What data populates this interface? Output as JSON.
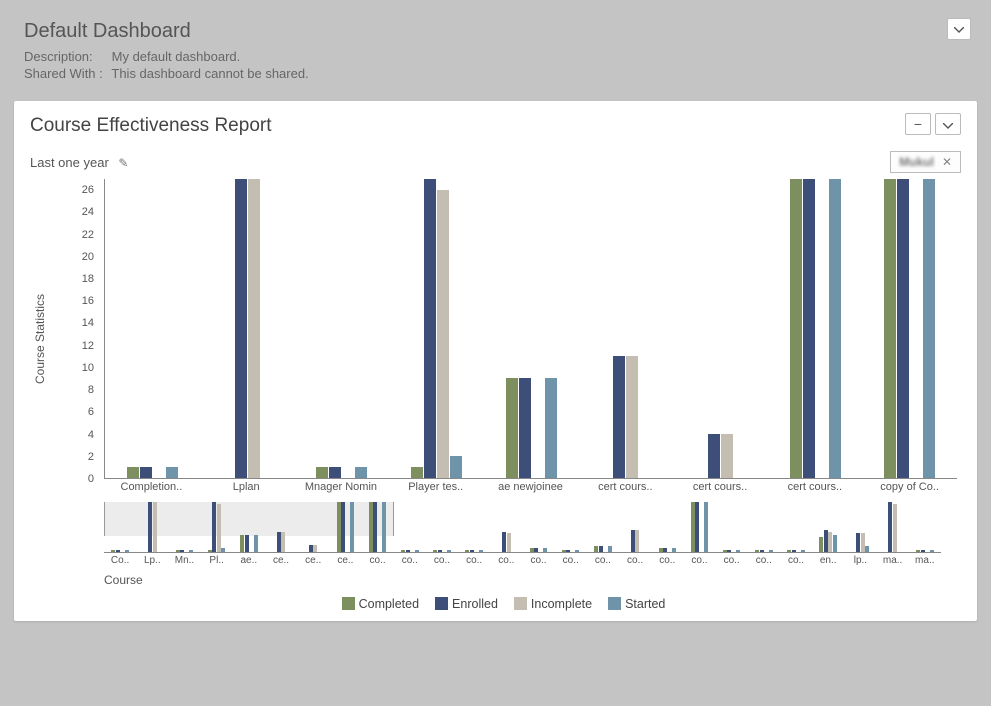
{
  "header": {
    "title": "Default Dashboard",
    "description_label": "Description:",
    "description_value": "My default dashboard.",
    "shared_label": "Shared With :",
    "shared_value": "This dashboard cannot be shared."
  },
  "panel": {
    "title": "Course Effectiveness Report",
    "range_label": "Last one year",
    "filter_chip": "Mukul"
  },
  "chart": {
    "type": "grouped-bar",
    "ylabel": "Course Statistics",
    "xlabel": "Course",
    "ylim": [
      0,
      27
    ],
    "yticks": [
      0,
      2,
      4,
      6,
      8,
      10,
      12,
      14,
      16,
      18,
      20,
      22,
      24,
      26
    ],
    "series": [
      {
        "key": "completed",
        "label": "Completed",
        "color": "#7e8f5f"
      },
      {
        "key": "enrolled",
        "label": "Enrolled",
        "color": "#3d4f78"
      },
      {
        "key": "incomplete",
        "label": "Incomplete",
        "color": "#c3bdb2"
      },
      {
        "key": "started",
        "label": "Started",
        "color": "#6f93a8"
      }
    ],
    "categories": [
      {
        "label": "Completion..",
        "completed": 1,
        "enrolled": 1,
        "incomplete": 0,
        "started": 1
      },
      {
        "label": "Lplan",
        "completed": 0,
        "enrolled": 27,
        "incomplete": 27,
        "started": 0
      },
      {
        "label": "Mnager Nomin",
        "completed": 1,
        "enrolled": 1,
        "incomplete": 0,
        "started": 1
      },
      {
        "label": "Player tes..",
        "completed": 1,
        "enrolled": 27,
        "incomplete": 26,
        "started": 2
      },
      {
        "label": "ae newjoinee",
        "completed": 9,
        "enrolled": 9,
        "incomplete": 0,
        "started": 9
      },
      {
        "label": "cert cours..",
        "completed": 0,
        "enrolled": 11,
        "incomplete": 11,
        "started": 0
      },
      {
        "label": "cert cours..",
        "completed": 0,
        "enrolled": 4,
        "incomplete": 4,
        "started": 0
      },
      {
        "label": "cert cours..",
        "completed": 27,
        "enrolled": 27,
        "incomplete": 0,
        "started": 27
      },
      {
        "label": "copy of Co..",
        "completed": 27,
        "enrolled": 27,
        "incomplete": 0,
        "started": 27
      }
    ]
  },
  "overview": {
    "categories": [
      {
        "label": "Co..",
        "v": [
          1,
          1,
          0,
          1
        ]
      },
      {
        "label": "Lp..",
        "v": [
          0,
          27,
          27,
          0
        ]
      },
      {
        "label": "Mn..",
        "v": [
          1,
          1,
          0,
          1
        ]
      },
      {
        "label": "Pl..",
        "v": [
          1,
          27,
          26,
          2
        ]
      },
      {
        "label": "ae..",
        "v": [
          9,
          9,
          0,
          9
        ]
      },
      {
        "label": "ce..",
        "v": [
          0,
          11,
          11,
          0
        ]
      },
      {
        "label": "ce..",
        "v": [
          0,
          4,
          4,
          0
        ]
      },
      {
        "label": "ce..",
        "v": [
          27,
          27,
          0,
          27
        ]
      },
      {
        "label": "co..",
        "v": [
          27,
          27,
          0,
          27
        ]
      },
      {
        "label": "co..",
        "v": [
          1,
          1,
          0,
          1
        ]
      },
      {
        "label": "co..",
        "v": [
          1,
          1,
          0,
          1
        ]
      },
      {
        "label": "co..",
        "v": [
          1,
          1,
          0,
          1
        ]
      },
      {
        "label": "co..",
        "v": [
          0,
          11,
          10,
          0
        ]
      },
      {
        "label": "co..",
        "v": [
          2,
          2,
          0,
          2
        ]
      },
      {
        "label": "co..",
        "v": [
          1,
          1,
          0,
          1
        ]
      },
      {
        "label": "co..",
        "v": [
          3,
          3,
          0,
          3
        ]
      },
      {
        "label": "co..",
        "v": [
          0,
          12,
          12,
          0
        ]
      },
      {
        "label": "co..",
        "v": [
          2,
          2,
          0,
          2
        ]
      },
      {
        "label": "co..",
        "v": [
          27,
          27,
          0,
          27
        ]
      },
      {
        "label": "co..",
        "v": [
          1,
          1,
          0,
          1
        ]
      },
      {
        "label": "co..",
        "v": [
          1,
          1,
          0,
          1
        ]
      },
      {
        "label": "co..",
        "v": [
          1,
          1,
          0,
          1
        ]
      },
      {
        "label": "en..",
        "v": [
          8,
          12,
          11,
          9
        ]
      },
      {
        "label": "lp..",
        "v": [
          0,
          10,
          10,
          3
        ]
      },
      {
        "label": "ma..",
        "v": [
          0,
          27,
          26,
          0
        ]
      },
      {
        "label": "ma..",
        "v": [
          1,
          1,
          0,
          1
        ]
      }
    ],
    "brush_range": [
      0,
      9
    ]
  }
}
